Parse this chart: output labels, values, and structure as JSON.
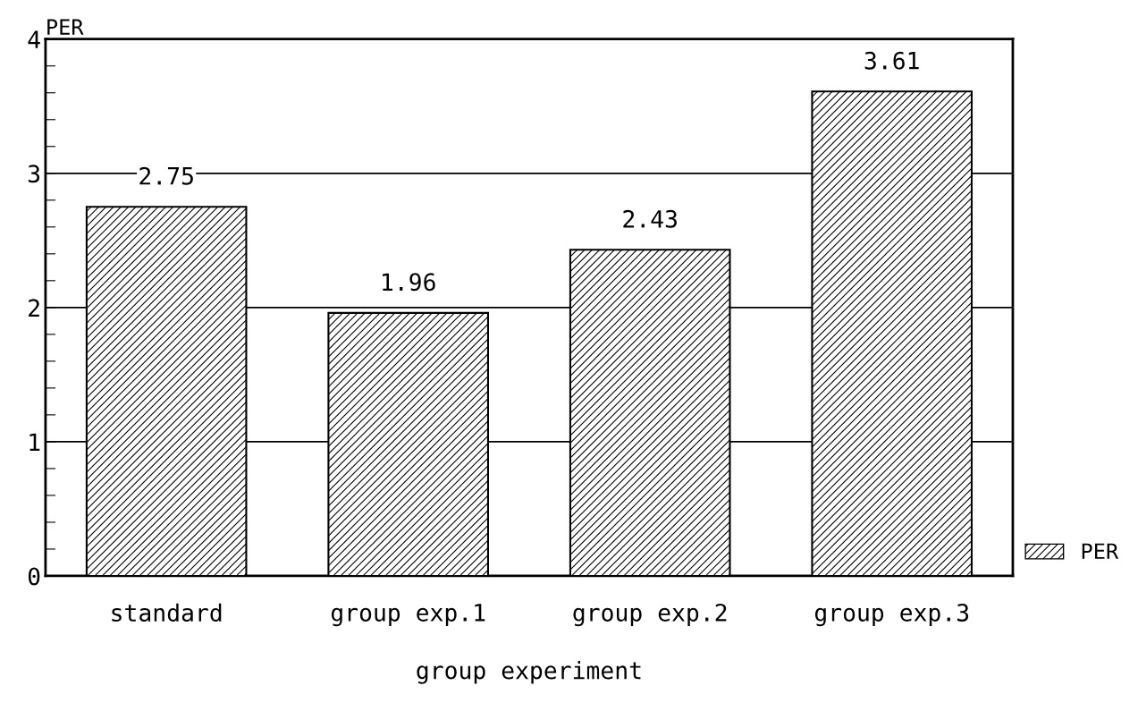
{
  "chart_data": {
    "type": "bar",
    "xlabel": "group experiment",
    "ylabel": "PER",
    "categories": [
      "standard",
      "group exp.1",
      "group exp.2",
      "group exp.3"
    ],
    "series": [
      {
        "name": "PER",
        "color": "#000000",
        "values": [
          2.75,
          1.96,
          2.43,
          3.61
        ]
      }
    ],
    "ylim": [
      0,
      4
    ],
    "yticks": [
      0,
      {
        "value": 0.2,
        "label": null
      },
      {
        "value": 0.4,
        "label": null
      },
      {
        "value": 0.6,
        "label": null
      },
      {
        "value": 0.8,
        "label": null
      },
      1,
      {
        "value": 1.2,
        "label": null
      },
      {
        "value": 1.4,
        "label": null
      },
      {
        "value": 1.6,
        "label": null
      },
      {
        "value": 1.8,
        "label": null
      },
      2,
      {
        "value": 2.2,
        "label": null
      },
      {
        "value": 2.4,
        "label": null
      },
      {
        "value": 2.6,
        "label": null
      },
      {
        "value": 2.8,
        "label": null
      },
      3,
      {
        "value": 3.2,
        "label": null
      },
      {
        "value": 3.4,
        "label": null
      },
      {
        "value": 3.6,
        "label": null
      },
      {
        "value": 3.8,
        "label": null
      },
      4
    ],
    "grid": "y",
    "data_labels": true,
    "legend": "bottom right"
  }
}
